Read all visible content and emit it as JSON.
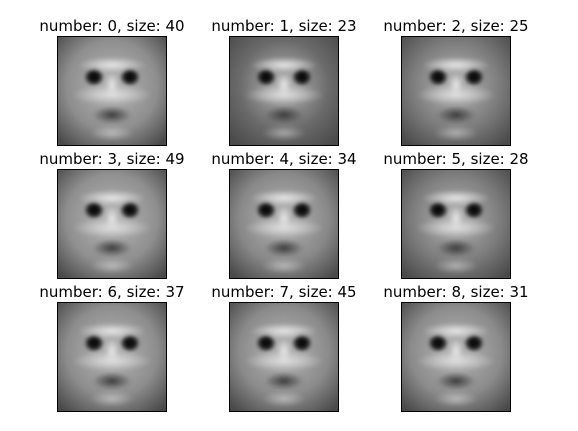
{
  "figure": {
    "panels": [
      {
        "title": "number: 0, size: 40",
        "tone": "#8e8e8e"
      },
      {
        "title": "number: 1, size: 23",
        "tone": "#6a6a6a"
      },
      {
        "title": "number: 2, size: 25",
        "tone": "#7a7a7a"
      },
      {
        "title": "number: 3, size: 49",
        "tone": "#8f8f8f"
      },
      {
        "title": "number: 4, size: 34",
        "tone": "#888888"
      },
      {
        "title": "number: 5, size: 28",
        "tone": "#7b7b7b"
      },
      {
        "title": "number: 6, size: 37",
        "tone": "#8d8d8d"
      },
      {
        "title": "number: 7, size: 45",
        "tone": "#8a8a8a"
      },
      {
        "title": "number: 8, size: 31",
        "tone": "#8b8b8b"
      }
    ]
  }
}
